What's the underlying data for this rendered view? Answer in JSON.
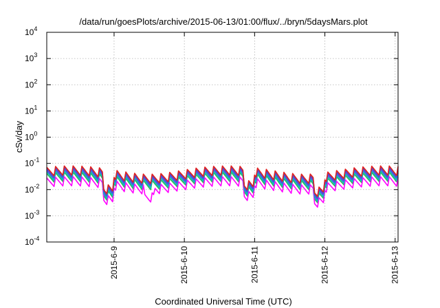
{
  "chart_data": {
    "type": "line",
    "title": "/data/run/goesPlots/archive/2015-06-13/01:00/flux/../bryn/5daysMars.plot",
    "xlabel": "Coordinated Universal Time (UTC)",
    "ylabel": "cSv/day",
    "y_scale": "log",
    "ylim": [
      0.0001,
      10000
    ],
    "y_ticks": [
      {
        "base": "10",
        "exp": "-4"
      },
      {
        "base": "10",
        "exp": "-3"
      },
      {
        "base": "10",
        "exp": "-2"
      },
      {
        "base": "10",
        "exp": "-1"
      },
      {
        "base": "10",
        "exp": "0"
      },
      {
        "base": "10",
        "exp": "1"
      },
      {
        "base": "10",
        "exp": "2"
      },
      {
        "base": "10",
        "exp": "3"
      },
      {
        "base": "10",
        "exp": "4"
      }
    ],
    "xlim": [
      "2015-06-08 01:00",
      "2015-06-13 01:00"
    ],
    "x_ticks": [
      "2015-6-9",
      "2015-6-10",
      "2015-6-11",
      "2015-6-12",
      "2015-6-13"
    ],
    "grid": true,
    "legend": false,
    "x": [],
    "series": [
      {
        "color": "#d4006a",
        "values": []
      },
      {
        "color": "#8a2be2",
        "values": []
      },
      {
        "color": "#2bb55a",
        "values": []
      },
      {
        "color": "#ff00ff",
        "values": []
      },
      {
        "color": "#00c0c0",
        "values": []
      },
      {
        "color": "#3a5bd9",
        "values": []
      },
      {
        "color": "#e02020",
        "values": []
      }
    ]
  }
}
